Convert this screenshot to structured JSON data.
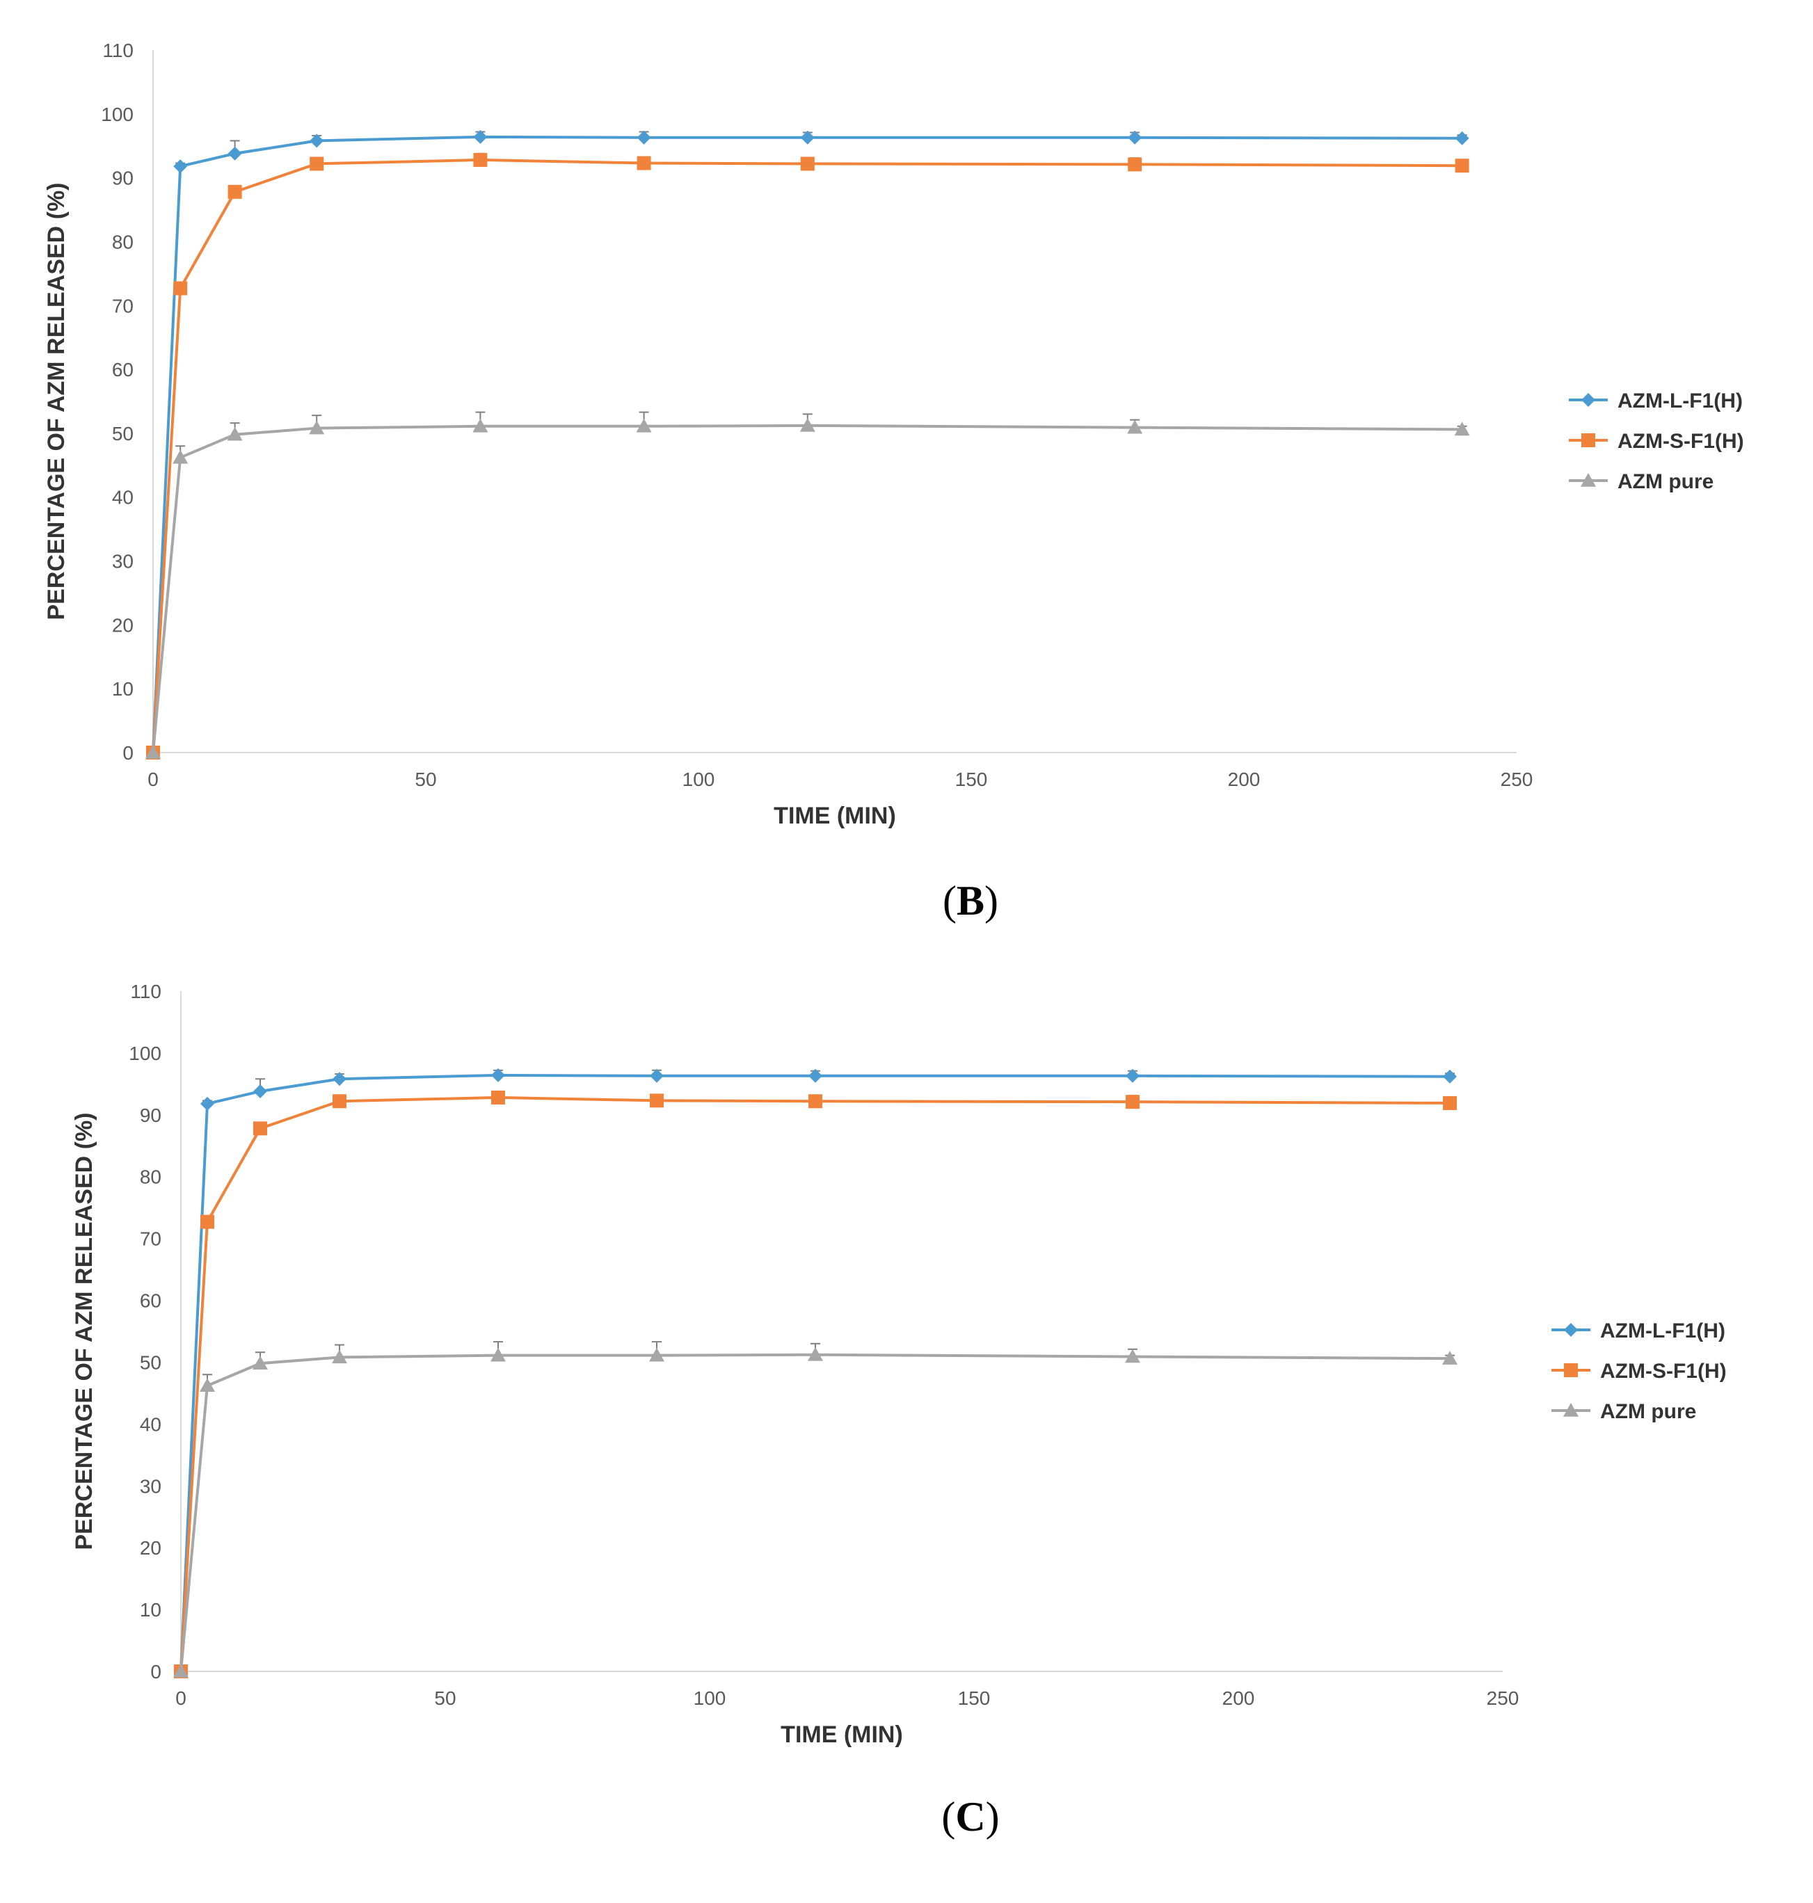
{
  "chart_data": [
    {
      "type": "line",
      "panel_label": "B",
      "panel_label_open": "(",
      "panel_label_close": ")",
      "xlabel": "TIME (MIN)",
      "ylabel": "PERCENTAGE OF AZM RELEASED (%)",
      "xlim": [
        0,
        250
      ],
      "ylim": [
        0,
        110
      ],
      "x_ticks": [
        0,
        50,
        100,
        150,
        200,
        250
      ],
      "y_ticks": [
        0,
        10,
        20,
        30,
        40,
        50,
        60,
        70,
        80,
        90,
        100,
        110
      ],
      "grid": false,
      "legend_position": "right",
      "x": [
        0,
        5,
        15,
        30,
        60,
        90,
        120,
        180,
        240
      ],
      "series": [
        {
          "name": "AZM-L-F1(H)",
          "color": "#4A9BD1",
          "marker": "diamond",
          "values": [
            0,
            91.8,
            93.8,
            95.8,
            96.4,
            96.3,
            96.3,
            96.3,
            96.2
          ],
          "errors": [
            0,
            0.5,
            2.0,
            0.8,
            0.8,
            0.9,
            0.8,
            0.8,
            0.5
          ]
        },
        {
          "name": "AZM-S-F1(H)",
          "color": "#F0823A",
          "marker": "square",
          "values": [
            0,
            72.7,
            87.8,
            92.2,
            92.8,
            92.3,
            92.2,
            92.1,
            91.9
          ],
          "errors": [
            0,
            0.6,
            0.6,
            0.8,
            1.0,
            0.9,
            0.9,
            1.0,
            0.6
          ]
        },
        {
          "name": "AZM pure",
          "color": "#A6A6A6",
          "marker": "triangle",
          "values": [
            0,
            46.2,
            49.8,
            50.8,
            51.1,
            51.1,
            51.2,
            50.9,
            50.6
          ],
          "errors": [
            0,
            1.8,
            1.8,
            2.0,
            2.2,
            2.2,
            1.8,
            1.2,
            0.5
          ]
        }
      ]
    },
    {
      "type": "line",
      "panel_label": "C",
      "panel_label_open": "(",
      "panel_label_close": ")",
      "xlabel": "TIME (MIN)",
      "ylabel": "PERCENTAGE OF AZM RELEASED (%)",
      "xlim": [
        0,
        250
      ],
      "ylim": [
        0,
        110
      ],
      "x_ticks": [
        0,
        50,
        100,
        150,
        200,
        250
      ],
      "y_ticks": [
        0,
        10,
        20,
        30,
        40,
        50,
        60,
        70,
        80,
        90,
        100,
        110
      ],
      "grid": false,
      "legend_position": "right",
      "x": [
        0,
        5,
        15,
        30,
        60,
        90,
        120,
        180,
        240
      ],
      "series": [
        {
          "name": "AZM-L-F1(H)",
          "color": "#4A9BD1",
          "marker": "diamond",
          "values": [
            0,
            91.8,
            93.8,
            95.8,
            96.4,
            96.3,
            96.3,
            96.3,
            96.2
          ],
          "errors": [
            0,
            0.5,
            2.0,
            0.8,
            0.8,
            0.9,
            0.8,
            0.8,
            0.5
          ]
        },
        {
          "name": "AZM-S-F1(H)",
          "color": "#F0823A",
          "marker": "square",
          "values": [
            0,
            72.7,
            87.8,
            92.2,
            92.8,
            92.3,
            92.2,
            92.1,
            91.9
          ],
          "errors": [
            0,
            0.6,
            0.6,
            0.8,
            1.0,
            0.9,
            0.9,
            1.0,
            0.6
          ]
        },
        {
          "name": "AZM pure",
          "color": "#A6A6A6",
          "marker": "triangle",
          "values": [
            0,
            46.2,
            49.8,
            50.8,
            51.1,
            51.1,
            51.2,
            50.9,
            50.6
          ],
          "errors": [
            0,
            1.8,
            1.8,
            2.0,
            2.2,
            2.2,
            1.8,
            1.2,
            0.5
          ]
        }
      ]
    }
  ]
}
